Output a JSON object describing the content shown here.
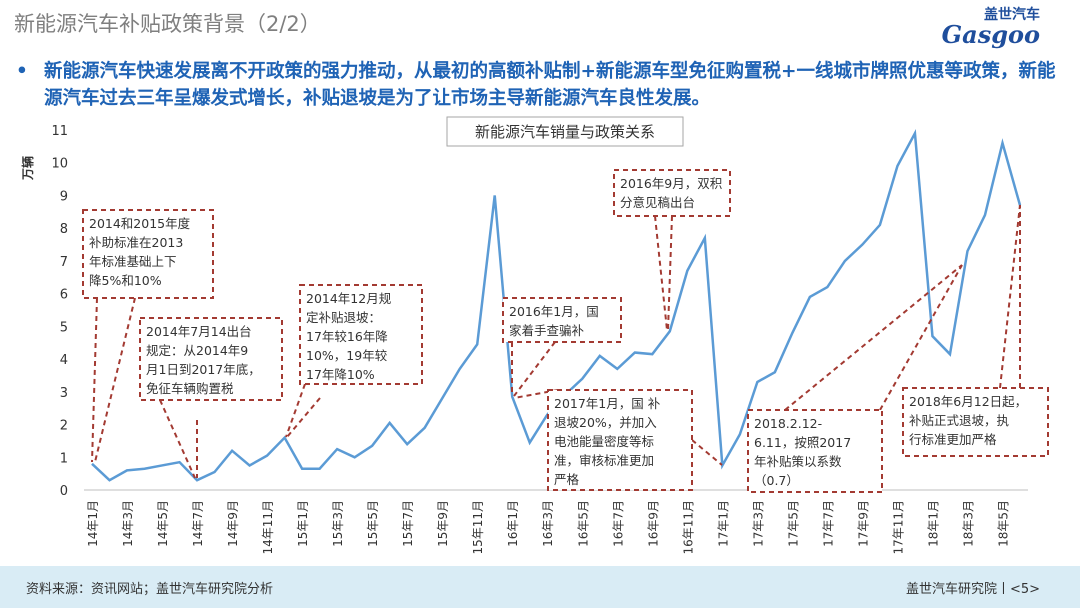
{
  "header": {
    "title": "新能源汽车补贴政策背景（2/2）",
    "logo_cn": "盖世汽车",
    "logo_en": "Gasgoo"
  },
  "bullet": "新能源汽车快速发展离不开政策的强力推动，从最初的高额补贴制+新能源车型免征购置税+一线城市牌照优惠等政策，新能源汽车过去三年呈爆发式增长，补贴退坡是为了让市场主导新能源汽车良性发展。",
  "chart_data": {
    "type": "line",
    "title": "新能源汽车销量与政策关系",
    "y_label": "万辆",
    "categories": [
      "14年1月",
      null,
      "14年3月",
      null,
      "14年5月",
      null,
      "14年7月",
      null,
      "14年9月",
      null,
      "14年11月",
      null,
      "15年1月",
      null,
      "15年3月",
      null,
      "15年5月",
      null,
      "15年7月",
      null,
      "15年9月",
      null,
      "15年11月",
      null,
      "16年1月",
      null,
      "16年3月",
      null,
      "16年5月",
      null,
      "16年7月",
      null,
      "16年9月",
      null,
      "16年11月",
      null,
      "17年1月",
      null,
      "17年3月",
      null,
      "17年5月",
      null,
      "17年7月",
      null,
      "17年9月",
      null,
      "17年11月",
      null,
      "18年1月",
      null,
      "18年3月",
      null,
      "18年5月",
      null
    ],
    "values": [
      0.8,
      0.3,
      0.6,
      0.65,
      0.75,
      0.85,
      0.3,
      0.55,
      1.2,
      0.75,
      1.05,
      1.6,
      0.65,
      0.65,
      1.25,
      1.0,
      1.35,
      2.05,
      1.4,
      1.9,
      2.8,
      3.7,
      4.45,
      9.0,
      2.85,
      1.45,
      2.3,
      2.9,
      3.4,
      4.1,
      3.7,
      4.2,
      4.15,
      4.85,
      6.7,
      7.7,
      0.75,
      1.7,
      3.3,
      3.6,
      4.8,
      5.9,
      6.2,
      7.0,
      7.5,
      8.1,
      9.9,
      10.9,
      4.7,
      4.15,
      7.3,
      8.4,
      10.6,
      8.7
    ],
    "color": "#5b9bd5",
    "ylim": [
      0,
      11
    ],
    "yticks": [
      0,
      1,
      2,
      3,
      4,
      5,
      6,
      7,
      8,
      9,
      10,
      11
    ],
    "annotations": [
      {
        "lines": [
          "2014和2015年度",
          "补助标准在2013",
          "年标准基础上下",
          "降5%和10%"
        ]
      },
      {
        "lines": [
          "2014年7月14出台",
          "规定：从2014年9",
          "月1日到2017年底，",
          "免征车辆购置税"
        ]
      },
      {
        "lines": [
          "2014年12月规",
          "定补贴退坡：",
          "17年较16年降",
          "10%，19年较",
          "17年降10%"
        ]
      },
      {
        "lines": [
          "2016年1月，国",
          "家着手查骗补"
        ]
      },
      {
        "lines": [
          "2016年9月，双积",
          "分意见稿出台"
        ]
      },
      {
        "lines": [
          "2017年1月，国 补",
          "退坡20%，并加入",
          "电池能量密度等标",
          "准，审核标准更加",
          "严格"
        ]
      },
      {
        "lines": [
          "2018.2.12-",
          "6.11，按照2017",
          "年补贴策以系数",
          "（0.7）"
        ]
      },
      {
        "lines": [
          "2018年6月12日起，",
          "补贴正式退坡，执",
          "行标准更加严格"
        ]
      }
    ]
  },
  "footer": {
    "source": "资料来源：资讯网站；盖世汽车研究院分析",
    "page": "盖世汽车研究院丨<5>"
  }
}
